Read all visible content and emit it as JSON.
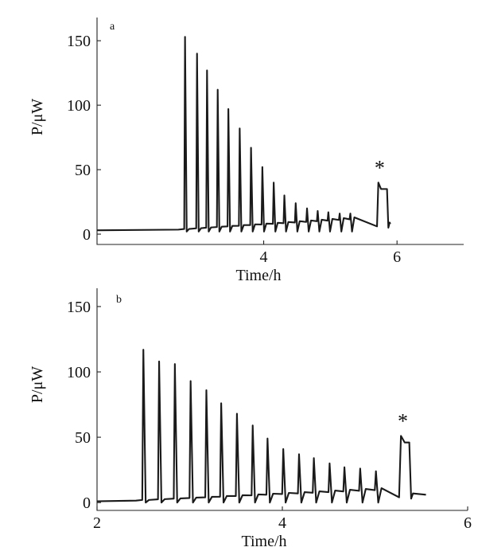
{
  "chart_data": [
    {
      "type": "line",
      "panel_label": "a",
      "xlabel": "Time/h",
      "ylabel": "P/μW",
      "xlim": [
        1.5,
        7.0
      ],
      "ylim": [
        -8,
        168
      ],
      "xticks": [
        4,
        6
      ],
      "yticks": [
        0,
        50,
        100,
        150
      ],
      "baseline": 3,
      "series": [
        {
          "x": [
            1.5,
            2.5,
            2.75,
            2.8,
            2.82,
            3.0,
            3.11,
            3.25,
            3.41,
            3.6,
            3.79,
            3.98,
            4.15,
            4.35,
            4.6,
            4.8,
            5.0,
            5.2,
            5.38,
            5.55,
            5.72,
            5.85,
            5.9
          ],
          "y": [
            3,
            3.5,
            4,
            4,
            5,
            6,
            8,
            10,
            11,
            12,
            14,
            16,
            17,
            19,
            22,
            25,
            26,
            27,
            28,
            30,
            33,
            36,
            7
          ]
        }
      ],
      "peaks": [
        {
          "x": 2.82,
          "y": 153
        },
        {
          "x": 3.0,
          "y": 140
        },
        {
          "x": 3.15,
          "y": 127
        },
        {
          "x": 3.31,
          "y": 112
        },
        {
          "x": 3.47,
          "y": 97
        },
        {
          "x": 3.64,
          "y": 82
        },
        {
          "x": 3.81,
          "y": 67
        },
        {
          "x": 3.98,
          "y": 52
        },
        {
          "x": 4.15,
          "y": 40
        },
        {
          "x": 4.31,
          "y": 30
        },
        {
          "x": 4.48,
          "y": 24
        },
        {
          "x": 4.65,
          "y": 20
        },
        {
          "x": 4.81,
          "y": 18
        },
        {
          "x": 4.97,
          "y": 17
        },
        {
          "x": 5.14,
          "y": 16
        },
        {
          "x": 5.3,
          "y": 16
        }
      ],
      "marker": {
        "text": "*",
        "x": 5.72,
        "peak_y": 40
      }
    },
    {
      "type": "line",
      "panel_label": "b",
      "xlabel": "Time/h",
      "ylabel": "P/μW",
      "xlim": [
        2.0,
        6.0
      ],
      "ylim": [
        -6,
        164
      ],
      "xticks": [
        2,
        4,
        6
      ],
      "yticks": [
        0,
        50,
        100,
        150
      ],
      "baseline": 1,
      "peaks": [
        {
          "x": 2.5,
          "y": 117
        },
        {
          "x": 2.67,
          "y": 108
        },
        {
          "x": 2.84,
          "y": 106
        },
        {
          "x": 3.01,
          "y": 93
        },
        {
          "x": 3.18,
          "y": 86
        },
        {
          "x": 3.34,
          "y": 76
        },
        {
          "x": 3.51,
          "y": 68
        },
        {
          "x": 3.68,
          "y": 59
        },
        {
          "x": 3.84,
          "y": 49
        },
        {
          "x": 4.01,
          "y": 41
        },
        {
          "x": 4.18,
          "y": 37
        },
        {
          "x": 4.34,
          "y": 34
        },
        {
          "x": 4.51,
          "y": 30
        },
        {
          "x": 4.67,
          "y": 27
        },
        {
          "x": 4.84,
          "y": 26
        },
        {
          "x": 5.01,
          "y": 24
        }
      ],
      "marker": {
        "text": "*",
        "x": 5.28,
        "peak_y": 51
      }
    }
  ]
}
